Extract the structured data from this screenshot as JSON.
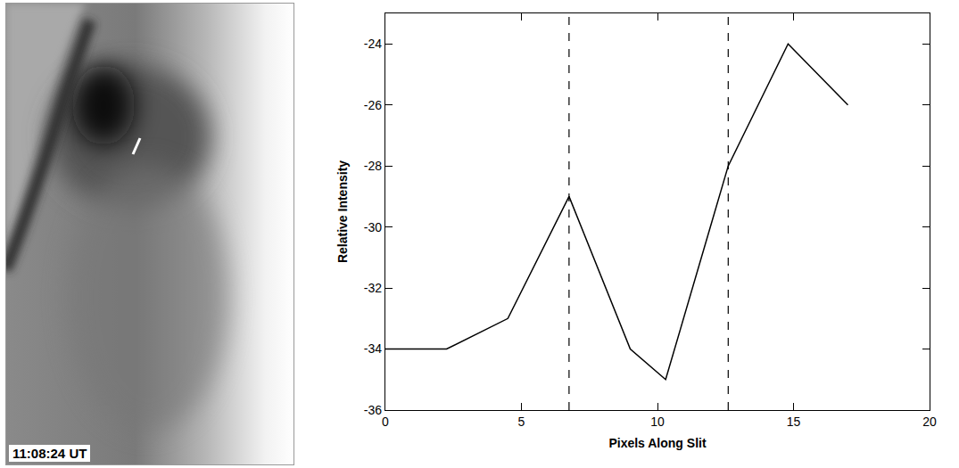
{
  "image": {
    "timestamp": "11:08:24 UT"
  },
  "chart_data": {
    "type": "line",
    "x": [
      0,
      2.25,
      4.5,
      6.75,
      9,
      10.3,
      12.6,
      14.8,
      17
    ],
    "values": [
      -34,
      -34,
      -33,
      -29,
      -34,
      -35,
      -28,
      -24,
      -26
    ],
    "color": "#000000",
    "x_label": "Pixels Along Slit",
    "y_label": "Relative Intensity",
    "xlim": [
      0,
      20
    ],
    "xticks": [
      0,
      5,
      10,
      15,
      20
    ],
    "ylim": [
      -36,
      -23
    ],
    "yticks": [
      -36,
      -34,
      -32,
      -30,
      -28,
      -26,
      -24
    ],
    "vertical_lines": [
      6.75,
      12.6
    ],
    "grid": false
  }
}
